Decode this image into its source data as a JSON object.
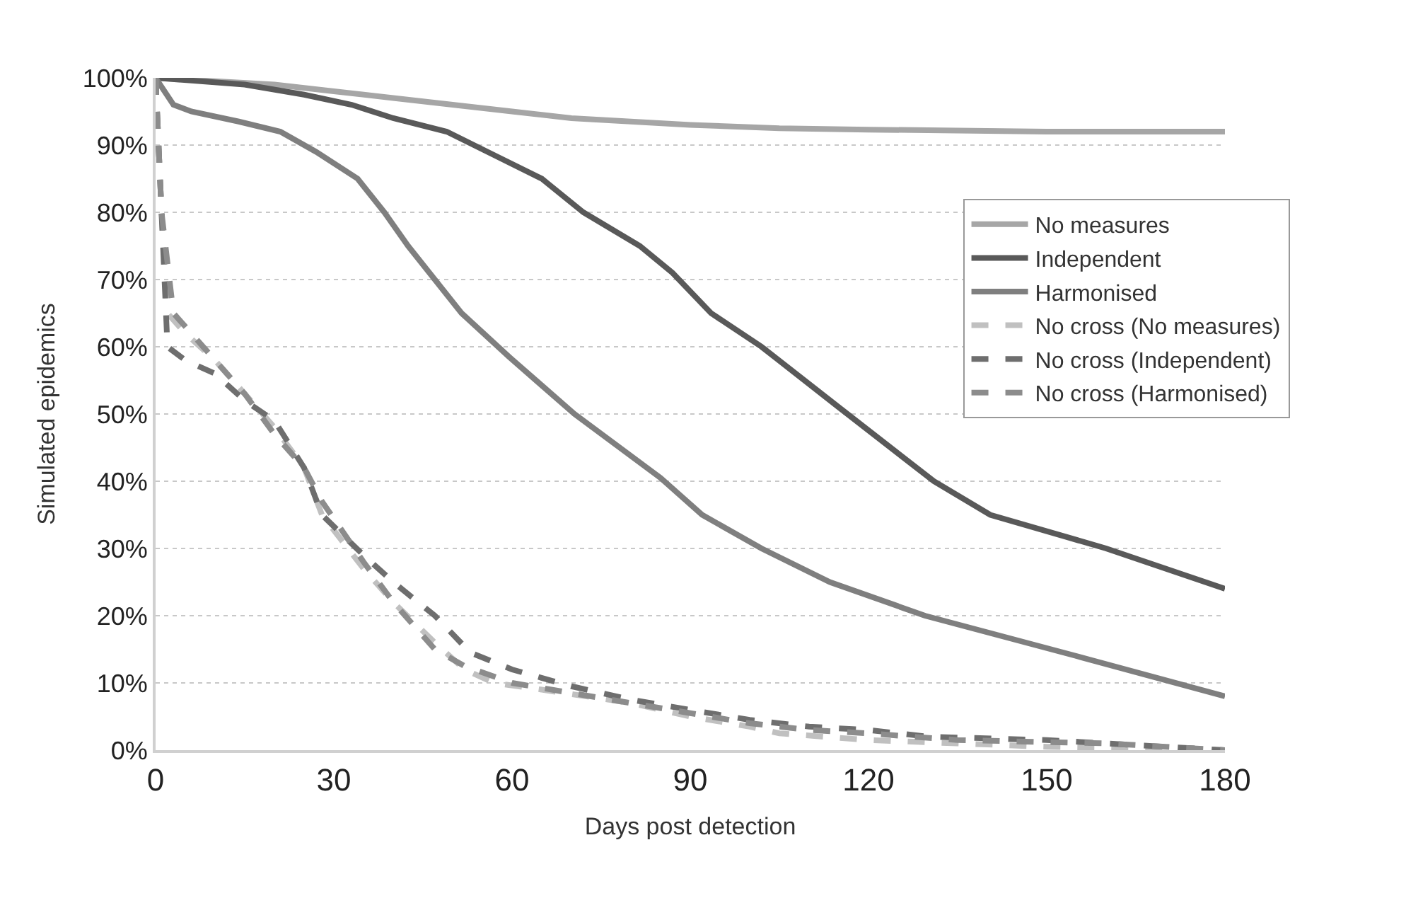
{
  "chart_data": {
    "type": "line",
    "xlabel": "Days post detection",
    "ylabel": "Simulated epidemics",
    "xlim": [
      0,
      180
    ],
    "xticks": [
      0,
      30,
      60,
      90,
      120,
      150,
      180
    ],
    "ylim": [
      0,
      100
    ],
    "yticks": [
      {
        "value": 0,
        "label": "0%"
      },
      {
        "value": 10,
        "label": "10%"
      },
      {
        "value": 20,
        "label": "20%"
      },
      {
        "value": 30,
        "label": "30%"
      },
      {
        "value": 40,
        "label": "40%"
      },
      {
        "value": 50,
        "label": "50%"
      },
      {
        "value": 60,
        "label": "60%"
      },
      {
        "value": 70,
        "label": "70%"
      },
      {
        "value": 80,
        "label": "80%"
      },
      {
        "value": 90,
        "label": "90%"
      },
      {
        "value": 100,
        "label": "100%"
      }
    ],
    "grid": "y",
    "legend": "right",
    "series": [
      {
        "name": "No measures",
        "color": "#a6a6a6",
        "line_style": "solid",
        "x": [
          0,
          10,
          20,
          30,
          40,
          50,
          60,
          70,
          90,
          105,
          120,
          150,
          180
        ],
        "values": [
          100,
          99.5,
          99,
          98,
          97,
          96,
          95,
          94,
          93,
          92.5,
          92.3,
          92,
          92
        ]
      },
      {
        "name": "Independent",
        "color": "#595959",
        "line_style": "solid",
        "x": [
          0,
          15,
          25,
          33,
          40,
          49,
          57,
          65,
          72,
          81.5,
          87,
          93.5,
          102,
          115,
          131,
          140.5,
          160,
          180
        ],
        "values": [
          100,
          99,
          97.5,
          96,
          94,
          92,
          88.5,
          85,
          80,
          75,
          71,
          65,
          60,
          51,
          40,
          35,
          30,
          24
        ]
      },
      {
        "name": "Harmonised",
        "color": "#7f7f7f",
        "line_style": "solid",
        "x": [
          0,
          3,
          6,
          14,
          21,
          27,
          34,
          38.5,
          42.5,
          51.5,
          59.5,
          70.5,
          85,
          92,
          102,
          113.5,
          129.5,
          155,
          180
        ],
        "values": [
          100,
          96,
          95,
          93.5,
          92,
          89,
          85,
          80,
          75,
          65,
          58.5,
          50,
          40.5,
          35,
          30,
          25,
          20,
          14,
          8
        ]
      },
      {
        "name": "No cross (No measures)",
        "color": "#c0c0c0",
        "line_style": "dashed",
        "x": [
          0,
          1,
          2,
          5,
          10,
          15,
          20,
          25,
          28,
          35,
          40,
          47,
          52,
          57,
          65,
          80,
          90,
          100,
          105,
          120,
          135,
          150,
          180
        ],
        "values": [
          100,
          80,
          65,
          62,
          58,
          53,
          48,
          42,
          35,
          27,
          22,
          16,
          12,
          10,
          9,
          7,
          5,
          3.5,
          2.5,
          1.5,
          1,
          0.5,
          0
        ]
      },
      {
        "name": "No cross (Independent)",
        "color": "#6e6e6e",
        "line_style": "dashed",
        "x": [
          0,
          1,
          2,
          5,
          10,
          15,
          20,
          25,
          28,
          35,
          40,
          47,
          53,
          60,
          70,
          80,
          90,
          100,
          110,
          120,
          130,
          150,
          180
        ],
        "values": [
          100,
          80,
          60,
          58,
          56,
          52,
          49,
          42,
          35,
          29,
          25,
          20,
          14.5,
          12,
          9.5,
          7.5,
          6,
          4.5,
          3.5,
          3,
          2,
          1.5,
          0
        ]
      },
      {
        "name": "No cross (Harmonised)",
        "color": "#8c8c8c",
        "line_style": "dashed",
        "x": [
          0,
          1,
          3,
          8,
          15,
          20,
          25,
          28,
          35,
          40,
          47,
          52,
          60,
          70,
          80,
          90,
          100,
          110,
          120,
          135,
          160,
          180
        ],
        "values": [
          100,
          80,
          65,
          60,
          53,
          47,
          42,
          37,
          28,
          22,
          15,
          12.5,
          10,
          8.5,
          7,
          5.5,
          4,
          3,
          2.5,
          1.5,
          1,
          0
        ]
      }
    ]
  }
}
